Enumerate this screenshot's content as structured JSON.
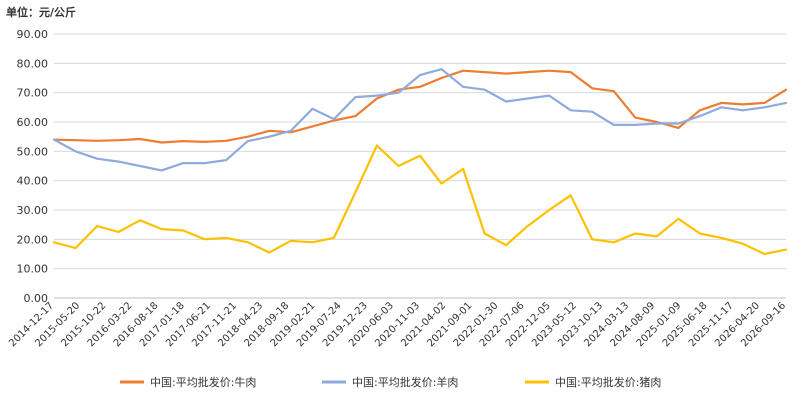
{
  "unit_label": "单位：元/公斤",
  "chart_data": {
    "type": "line",
    "y_ticks": [
      "90.00",
      "80.00",
      "70.00",
      "60.00",
      "50.00",
      "40.00",
      "30.00",
      "20.00",
      "10.00",
      "0.00"
    ],
    "ylim": [
      0,
      90
    ],
    "x_ticks": [
      "2014-12-17",
      "2015-05-20",
      "2015-10-22",
      "2016-03-22",
      "2016-08-18",
      "2017-01-18",
      "2017-06-21",
      "2017-11-21",
      "2018-04-23",
      "2018-09-18",
      "2019-02-21",
      "2019-07-24",
      "2019-12-23",
      "2020-06-03",
      "2020-11-03",
      "2021-04-02",
      "2021-09-01",
      "2022-01-30",
      "2022-07-06",
      "2022-12-05",
      "2023-05-12",
      "2023-10-13",
      "2024-03-13",
      "2024-08-09",
      "2025-01-09",
      "2025-06-18",
      "2025-11-17",
      "2026-04-20",
      "2026-09-16"
    ],
    "grid": true,
    "legend_position": "bottom",
    "series": [
      {
        "name": "中国:平均批发价:牛肉",
        "color": "#ED7D31",
        "values": [
          54.0,
          53.8,
          53.6,
          53.8,
          54.2,
          53.0,
          53.5,
          53.2,
          53.6,
          55.0,
          57.0,
          56.5,
          58.5,
          60.5,
          62.0,
          68.0,
          71.0,
          72.0,
          75.0,
          77.5,
          77.0,
          76.5,
          77.0,
          77.5,
          77.0,
          71.5,
          70.5,
          61.5,
          60.0,
          58.0,
          64.0,
          66.5,
          66.0,
          66.5,
          71.0
        ]
      },
      {
        "name": "中国:平均批发价:羊肉",
        "color": "#8FAADC",
        "values": [
          54.0,
          50.0,
          47.5,
          46.5,
          45.0,
          43.5,
          46.0,
          46.0,
          47.0,
          53.5,
          55.0,
          57.0,
          64.5,
          61.0,
          68.5,
          69.0,
          70.0,
          76.0,
          78.0,
          72.0,
          71.0,
          67.0,
          68.0,
          69.0,
          64.0,
          63.5,
          59.0,
          59.0,
          59.5,
          59.5,
          62.0,
          65.0,
          64.0,
          65.0,
          66.5
        ]
      },
      {
        "name": "中国:平均批发价:猪肉",
        "color": "#FFC000",
        "values": [
          19.0,
          17.0,
          24.5,
          22.5,
          26.5,
          23.5,
          23.0,
          20.0,
          20.5,
          19.0,
          15.5,
          19.5,
          19.0,
          20.5,
          36.0,
          52.0,
          45.0,
          48.5,
          39.0,
          44.0,
          22.0,
          18.0,
          24.5,
          30.0,
          35.0,
          20.0,
          19.0,
          22.0,
          21.0,
          27.0,
          22.0,
          20.5,
          18.5,
          15.0,
          16.5
        ]
      }
    ]
  }
}
